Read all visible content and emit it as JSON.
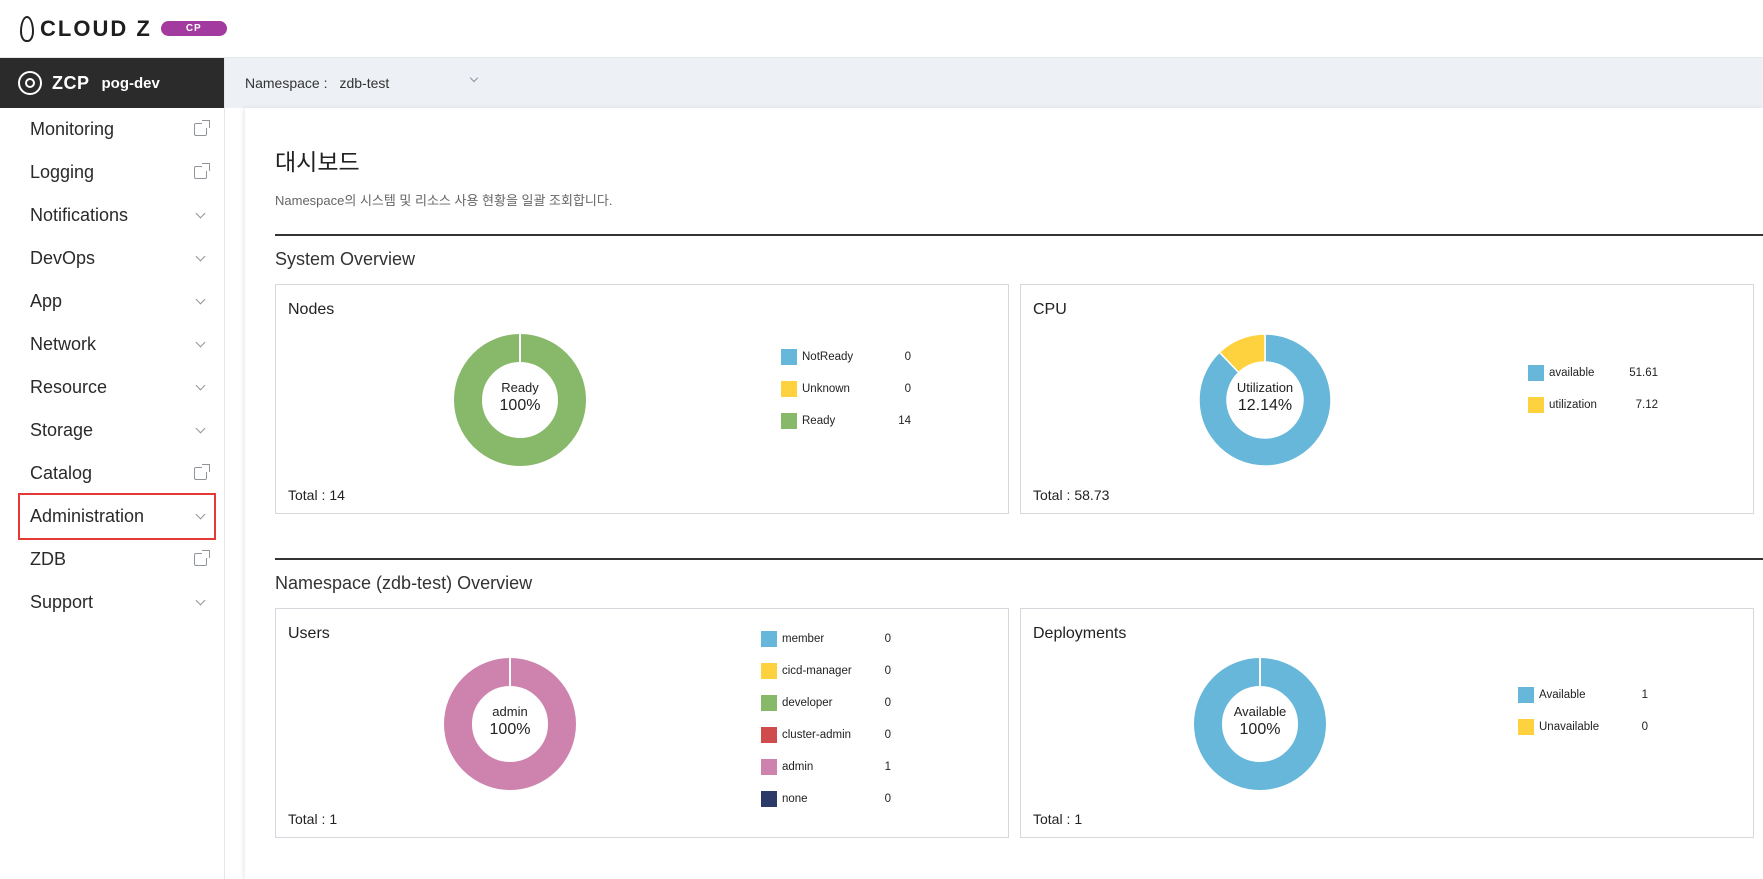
{
  "header": {
    "brand": "CLOUD Z",
    "badge": "CP"
  },
  "sidebar": {
    "product": "ZCP",
    "cluster": "pog-dev",
    "items": [
      {
        "label": "Monitoring",
        "icon": "external-link-icon"
      },
      {
        "label": "Logging",
        "icon": "external-link-icon"
      },
      {
        "label": "Notifications",
        "icon": "chevron-down-icon"
      },
      {
        "label": "DevOps",
        "icon": "chevron-down-icon"
      },
      {
        "label": "App",
        "icon": "chevron-down-icon"
      },
      {
        "label": "Network",
        "icon": "chevron-down-icon"
      },
      {
        "label": "Resource",
        "icon": "chevron-down-icon"
      },
      {
        "label": "Storage",
        "icon": "chevron-down-icon"
      },
      {
        "label": "Catalog",
        "icon": "external-link-icon"
      },
      {
        "label": "Administration",
        "icon": "chevron-down-icon",
        "highlighted": true
      },
      {
        "label": "ZDB",
        "icon": "external-link-icon"
      },
      {
        "label": "Support",
        "icon": "chevron-down-icon"
      }
    ]
  },
  "namespace": {
    "label": "Namespace :",
    "value": "zdb-test"
  },
  "page": {
    "title": "대시보드",
    "description": "Namespace의 시스템 및 리소스 사용 현황을 일괄 조회합니다."
  },
  "sections": {
    "system": "System Overview",
    "namespace": "Namespace (zdb-test) Overview"
  },
  "total_label": "Total :",
  "colors": {
    "blue": "#66b7da",
    "yellow": "#fdd23e",
    "green": "#88b86a",
    "red": "#d04b4b",
    "pink": "#cd83ae",
    "navy": "#2b3a67"
  },
  "chart_data": [
    {
      "type": "pie",
      "title": "Nodes",
      "center_label": "Ready",
      "center_value": "100%",
      "total": "14",
      "series": [
        {
          "name": "NotReady",
          "value": 0,
          "color": "#66b7da"
        },
        {
          "name": "Unknown",
          "value": 0,
          "color": "#fdd23e"
        },
        {
          "name": "Ready",
          "value": 14,
          "color": "#88b86a"
        }
      ]
    },
    {
      "type": "pie",
      "title": "CPU",
      "center_label": "Utilization",
      "center_value": "12.14%",
      "total": "58.73",
      "series": [
        {
          "name": "available",
          "value": 51.61,
          "color": "#66b7da"
        },
        {
          "name": "utilization",
          "value": 7.12,
          "color": "#fdd23e"
        }
      ]
    },
    {
      "type": "pie",
      "title": "Users",
      "center_label": "admin",
      "center_value": "100%",
      "total": "1",
      "series": [
        {
          "name": "member",
          "value": 0,
          "color": "#66b7da"
        },
        {
          "name": "cicd-manager",
          "value": 0,
          "color": "#fdd23e"
        },
        {
          "name": "developer",
          "value": 0,
          "color": "#88b86a"
        },
        {
          "name": "cluster-admin",
          "value": 0,
          "color": "#d04b4b"
        },
        {
          "name": "admin",
          "value": 1,
          "color": "#cd83ae"
        },
        {
          "name": "none",
          "value": 0,
          "color": "#2b3a67"
        }
      ]
    },
    {
      "type": "pie",
      "title": "Deployments",
      "center_label": "Available",
      "center_value": "100%",
      "total": "1",
      "series": [
        {
          "name": "Available",
          "value": 1,
          "color": "#66b7da"
        },
        {
          "name": "Unavailable",
          "value": 0,
          "color": "#fdd23e"
        }
      ]
    }
  ]
}
